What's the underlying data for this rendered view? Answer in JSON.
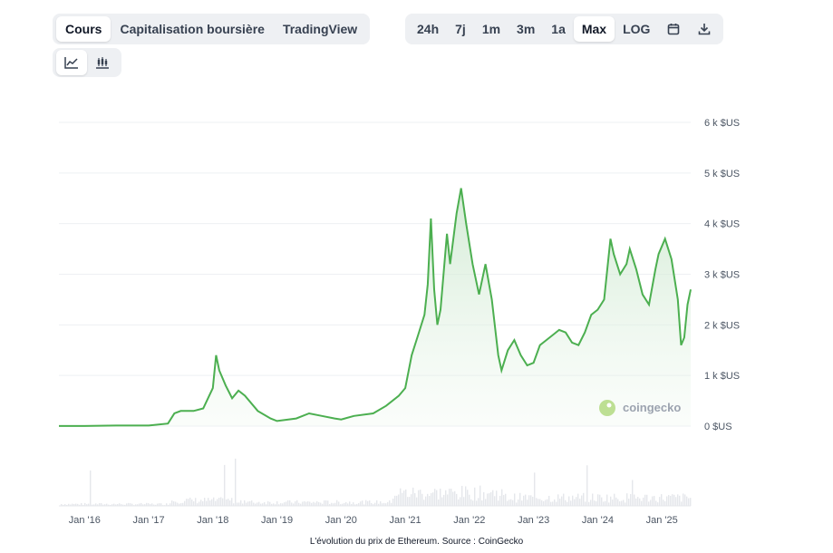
{
  "tabs_left": [
    {
      "label": "Cours",
      "active": true
    },
    {
      "label": "Capitalisation boursière",
      "active": false
    },
    {
      "label": "TradingView",
      "active": false
    }
  ],
  "tabs_right": [
    {
      "label": "24h",
      "active": false
    },
    {
      "label": "7j",
      "active": false
    },
    {
      "label": "1m",
      "active": false
    },
    {
      "label": "3m",
      "active": false
    },
    {
      "label": "1a",
      "active": false
    },
    {
      "label": "Max",
      "active": true
    },
    {
      "label": "LOG",
      "active": false
    }
  ],
  "icons": {
    "calendar": "calendar-icon",
    "download": "download-icon",
    "line_chart": "line-chart-icon",
    "candlestick": "candlestick-icon"
  },
  "watermark": "coingecko",
  "caption": "L'évolution du prix de Ethereum. Source : CoinGecko",
  "colors": {
    "line": "#4caf50",
    "fill": "#e8f5e9",
    "accent_active": "#ffffff",
    "volume": "#e5e7eb"
  },
  "chart_data": {
    "type": "area",
    "y_unit": "$US",
    "yticks": [
      "6 k $US",
      "5 k $US",
      "4 k $US",
      "3 k $US",
      "2 k $US",
      "1 k $US",
      "0 $US"
    ],
    "ytick_values": [
      6000,
      5000,
      4000,
      3000,
      2000,
      1000,
      0
    ],
    "ylim": [
      0,
      6000
    ],
    "xticks": [
      "Jan '16",
      "Jan '17",
      "Jan '18",
      "Jan '19",
      "Jan '20",
      "Jan '21",
      "Jan '22",
      "Jan '23",
      "Jan '24",
      "Jan '25"
    ],
    "xtick_values": [
      2016,
      2017,
      2018,
      2019,
      2020,
      2021,
      2022,
      2023,
      2024,
      2025
    ],
    "xlim": [
      2015.6,
      2025.45
    ],
    "grid": true,
    "x": [
      2015.6,
      2016.0,
      2016.5,
      2017.0,
      2017.3,
      2017.4,
      2017.5,
      2017.7,
      2017.85,
      2018.0,
      2018.05,
      2018.1,
      2018.2,
      2018.3,
      2018.4,
      2018.5,
      2018.7,
      2018.9,
      2019.0,
      2019.3,
      2019.5,
      2019.7,
      2019.9,
      2020.0,
      2020.2,
      2020.5,
      2020.7,
      2020.9,
      2021.0,
      2021.1,
      2021.2,
      2021.3,
      2021.35,
      2021.4,
      2021.45,
      2021.5,
      2021.55,
      2021.65,
      2021.7,
      2021.8,
      2021.87,
      2021.95,
      2022.05,
      2022.15,
      2022.25,
      2022.35,
      2022.45,
      2022.5,
      2022.6,
      2022.7,
      2022.8,
      2022.9,
      2023.0,
      2023.1,
      2023.2,
      2023.3,
      2023.4,
      2023.5,
      2023.6,
      2023.7,
      2023.8,
      2023.9,
      2024.0,
      2024.1,
      2024.2,
      2024.25,
      2024.35,
      2024.45,
      2024.5,
      2024.6,
      2024.7,
      2024.8,
      2024.9,
      2024.95,
      2025.05,
      2025.15,
      2025.25,
      2025.3,
      2025.35,
      2025.4,
      2025.45
    ],
    "values": [
      1,
      1,
      10,
      10,
      50,
      250,
      300,
      300,
      350,
      750,
      1400,
      1100,
      800,
      550,
      700,
      600,
      300,
      150,
      100,
      150,
      250,
      200,
      150,
      130,
      200,
      250,
      400,
      600,
      750,
      1400,
      1800,
      2200,
      2800,
      4100,
      2700,
      2000,
      2300,
      3800,
      3200,
      4200,
      4700,
      4000,
      3200,
      2600,
      3200,
      2500,
      1400,
      1100,
      1500,
      1700,
      1400,
      1200,
      1250,
      1600,
      1700,
      1800,
      1900,
      1850,
      1650,
      1600,
      1850,
      2200,
      2300,
      2500,
      3700,
      3400,
      3000,
      3200,
      3500,
      3100,
      2600,
      2400,
      3100,
      3400,
      3700,
      3300,
      2500,
      1600,
      1750,
      2400,
      2700
    ]
  }
}
